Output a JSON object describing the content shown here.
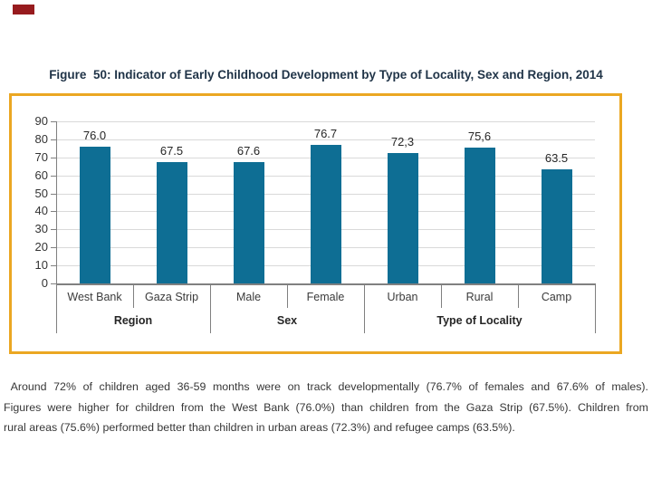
{
  "page": {
    "marker_color": "#971B1E",
    "background": "#FFFFFF"
  },
  "figure": {
    "title": "Figure  50: Indicator of Early Childhood Development by Type of Locality, Sex and Region, 2014",
    "title_color": "#1F3347"
  },
  "chart_data": {
    "type": "bar",
    "title": "Figure 50: Indicator of Early Childhood Development by Type of Locality, Sex and Region, 2014",
    "categories": [
      "West Bank",
      "Gaza Strip",
      "Male",
      "Female",
      "Urban",
      "Rural",
      "Camp"
    ],
    "values": [
      76.0,
      67.5,
      67.6,
      76.7,
      72.3,
      75.6,
      63.5
    ],
    "value_labels": [
      "76.0",
      "67.5",
      "67.6",
      "76.7",
      "72,3",
      "75,6",
      "63.5"
    ],
    "groups": [
      {
        "label": "Region",
        "span": 2
      },
      {
        "label": "Sex",
        "span": 2
      },
      {
        "label": "Type of Locality",
        "span": 3
      }
    ],
    "xlabel": "",
    "ylabel": "",
    "y_ticks": [
      0,
      10,
      20,
      30,
      40,
      50,
      60,
      70,
      80,
      90
    ],
    "ylim": [
      0,
      90
    ],
    "grid": true,
    "legend": false,
    "bar_color": "#0E6E94",
    "frame_color": "#EBA722",
    "grid_color": "#D9D9D9",
    "axis_color": "#808080"
  },
  "caption": {
    "lines": [
      " Around 72% of children aged 36-59 months were on track developmentally (76.7% of females and 67.6% of males).",
      "Figures were higher for children from the West Bank (76.0%) than children from the Gaza Strip (67.5%). Children from",
      "rural areas (75.6%) performed better than children in urban areas (72.3%) and refugee camps (63.5%)."
    ]
  }
}
